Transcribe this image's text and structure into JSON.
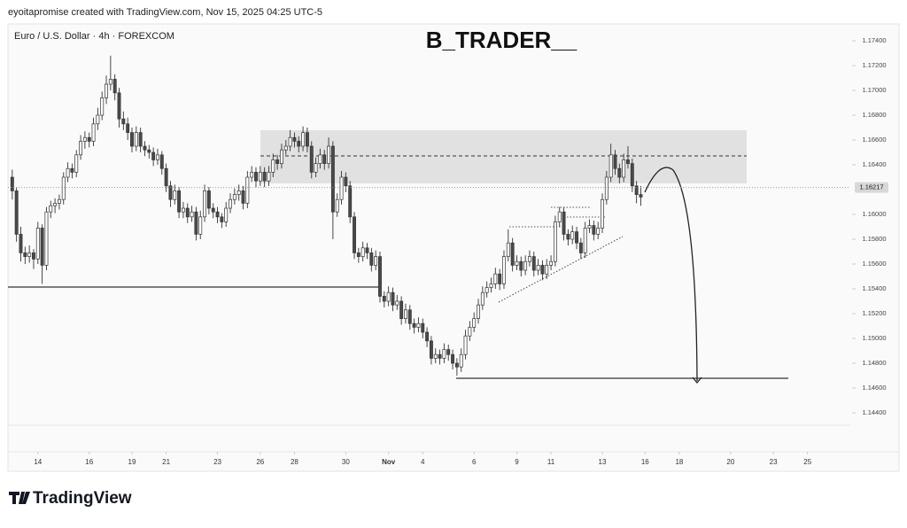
{
  "header": {
    "credit": "eyoitapromise created with TradingView.com, Nov 15, 2025 04:25 UTC-5"
  },
  "chart_data": {
    "type": "candlestick",
    "symbol": "Euro / U.S. Dollar · 4h · FOREXCOM",
    "title": "B_TRADER__",
    "up_color": "#ffffff",
    "down_color": "#4a4a4a",
    "last_price": 1.16217,
    "xlim": [
      -1,
      196
    ],
    "xticks": [
      {
        "value": 6,
        "label": "14"
      },
      {
        "value": 18,
        "label": "16"
      },
      {
        "value": 28,
        "label": "19"
      },
      {
        "value": 36,
        "label": "21"
      },
      {
        "value": 48,
        "label": "23"
      },
      {
        "value": 58,
        "label": "26"
      },
      {
        "value": 66,
        "label": "28"
      },
      {
        "value": 78,
        "label": "30"
      },
      {
        "value": 88,
        "label": "Nov"
      },
      {
        "value": 96,
        "label": "4"
      },
      {
        "value": 108,
        "label": "6"
      },
      {
        "value": 118,
        "label": "9"
      },
      {
        "value": 126,
        "label": "11"
      },
      {
        "value": 138,
        "label": "13"
      },
      {
        "value": 148,
        "label": "16"
      },
      {
        "value": 156,
        "label": "18"
      },
      {
        "value": 168,
        "label": "20"
      },
      {
        "value": 178,
        "label": "23"
      },
      {
        "value": 186,
        "label": "25"
      }
    ],
    "ylim": [
      1.143,
      1.17536
    ],
    "yticks": [
      {
        "value": 1.174,
        "label": "1.17400"
      },
      {
        "value": 1.172,
        "label": "1.17200"
      },
      {
        "value": 1.17,
        "label": "1.17000"
      },
      {
        "value": 1.168,
        "label": "1.16800"
      },
      {
        "value": 1.166,
        "label": "1.16600"
      },
      {
        "value": 1.164,
        "label": "1.16400"
      },
      {
        "value": 1.16,
        "label": "1.16000"
      },
      {
        "value": 1.158,
        "label": "1.15800"
      },
      {
        "value": 1.156,
        "label": "1.15600"
      },
      {
        "value": 1.154,
        "label": "1.15400"
      },
      {
        "value": 1.152,
        "label": "1.15200"
      },
      {
        "value": 1.15,
        "label": "1.15000"
      },
      {
        "value": 1.148,
        "label": "1.14800"
      },
      {
        "value": 1.146,
        "label": "1.14600"
      },
      {
        "value": 1.144,
        "label": "1.14400"
      }
    ],
    "candles": [
      [
        1.163,
        1.1636,
        1.1612,
        1.1619
      ],
      [
        1.1619,
        1.1622,
        1.1578,
        1.1584
      ],
      [
        1.1584,
        1.159,
        1.1562,
        1.1569
      ],
      [
        1.1569,
        1.1574,
        1.156,
        1.1566
      ],
      [
        1.1566,
        1.1575,
        1.1561,
        1.1569
      ],
      [
        1.1569,
        1.1572,
        1.1556,
        1.1564
      ],
      [
        1.1564,
        1.1594,
        1.156,
        1.1589
      ],
      [
        1.1589,
        1.1592,
        1.1544,
        1.1559
      ],
      [
        1.1559,
        1.1606,
        1.1555,
        1.1602
      ],
      [
        1.1602,
        1.1611,
        1.1597,
        1.1607
      ],
      [
        1.1607,
        1.1613,
        1.1601,
        1.1609
      ],
      [
        1.1609,
        1.1616,
        1.1604,
        1.1612
      ],
      [
        1.1612,
        1.1634,
        1.1608,
        1.163
      ],
      [
        1.163,
        1.1642,
        1.1626,
        1.1637
      ],
      [
        1.1637,
        1.1641,
        1.1629,
        1.1634
      ],
      [
        1.1634,
        1.1652,
        1.163,
        1.1648
      ],
      [
        1.1648,
        1.1664,
        1.1644,
        1.1659
      ],
      [
        1.1659,
        1.1667,
        1.1653,
        1.1662
      ],
      [
        1.1662,
        1.1666,
        1.1654,
        1.1659
      ],
      [
        1.1659,
        1.1678,
        1.1655,
        1.1673
      ],
      [
        1.1673,
        1.1686,
        1.1668,
        1.168
      ],
      [
        1.168,
        1.1699,
        1.1676,
        1.1694
      ],
      [
        1.1694,
        1.1712,
        1.1689,
        1.1705
      ],
      [
        1.1705,
        1.1728,
        1.17,
        1.1709
      ],
      [
        1.1709,
        1.1713,
        1.1692,
        1.1698
      ],
      [
        1.1698,
        1.1702,
        1.167,
        1.1677
      ],
      [
        1.1677,
        1.1683,
        1.1668,
        1.1673
      ],
      [
        1.1673,
        1.1678,
        1.166,
        1.1666
      ],
      [
        1.1666,
        1.167,
        1.165,
        1.1655
      ],
      [
        1.1655,
        1.1671,
        1.1651,
        1.1666
      ],
      [
        1.1666,
        1.167,
        1.165,
        1.1655
      ],
      [
        1.1655,
        1.1659,
        1.1647,
        1.1652
      ],
      [
        1.1652,
        1.1656,
        1.1645,
        1.165
      ],
      [
        1.165,
        1.1654,
        1.1639,
        1.1644
      ],
      [
        1.1644,
        1.1653,
        1.164,
        1.1648
      ],
      [
        1.1648,
        1.1651,
        1.1632,
        1.1637
      ],
      [
        1.1637,
        1.1641,
        1.1618,
        1.1623
      ],
      [
        1.1623,
        1.1627,
        1.1606,
        1.1612
      ],
      [
        1.1612,
        1.1624,
        1.1608,
        1.1619
      ],
      [
        1.1619,
        1.1622,
        1.1597,
        1.1602
      ],
      [
        1.1602,
        1.161,
        1.1597,
        1.1605
      ],
      [
        1.1605,
        1.1609,
        1.1593,
        1.1598
      ],
      [
        1.1598,
        1.1607,
        1.1594,
        1.1602
      ],
      [
        1.1602,
        1.1606,
        1.1579,
        1.1584
      ],
      [
        1.1584,
        1.1603,
        1.158,
        1.1598
      ],
      [
        1.1598,
        1.1624,
        1.1594,
        1.1619
      ],
      [
        1.1619,
        1.1622,
        1.16,
        1.1605
      ],
      [
        1.1605,
        1.1609,
        1.1597,
        1.1602
      ],
      [
        1.1602,
        1.1606,
        1.1593,
        1.1598
      ],
      [
        1.1598,
        1.1601,
        1.1589,
        1.1594
      ],
      [
        1.1594,
        1.161,
        1.159,
        1.1605
      ],
      [
        1.1605,
        1.1617,
        1.1601,
        1.1612
      ],
      [
        1.1612,
        1.1621,
        1.1608,
        1.1616
      ],
      [
        1.1616,
        1.1624,
        1.1611,
        1.1619
      ],
      [
        1.1619,
        1.1623,
        1.1604,
        1.1609
      ],
      [
        1.1609,
        1.1635,
        1.1605,
        1.163
      ],
      [
        1.163,
        1.1639,
        1.1626,
        1.1634
      ],
      [
        1.1634,
        1.1638,
        1.1622,
        1.1627
      ],
      [
        1.1627,
        1.1639,
        1.1623,
        1.1634
      ],
      [
        1.1634,
        1.1638,
        1.1622,
        1.1627
      ],
      [
        1.1627,
        1.1639,
        1.1623,
        1.1634
      ],
      [
        1.1634,
        1.1649,
        1.163,
        1.1644
      ],
      [
        1.1644,
        1.1648,
        1.1636,
        1.1641
      ],
      [
        1.1641,
        1.1657,
        1.1637,
        1.1652
      ],
      [
        1.1652,
        1.166,
        1.1648,
        1.1655
      ],
      [
        1.1655,
        1.1668,
        1.1651,
        1.1662
      ],
      [
        1.1662,
        1.1666,
        1.1654,
        1.1659
      ],
      [
        1.1659,
        1.1663,
        1.165,
        1.1655
      ],
      [
        1.1655,
        1.1671,
        1.1651,
        1.1666
      ],
      [
        1.1666,
        1.167,
        1.165,
        1.1655
      ],
      [
        1.1655,
        1.1659,
        1.1629,
        1.1634
      ],
      [
        1.1634,
        1.1646,
        1.163,
        1.1641
      ],
      [
        1.1641,
        1.1653,
        1.1637,
        1.1648
      ],
      [
        1.1648,
        1.1652,
        1.1636,
        1.1641
      ],
      [
        1.1641,
        1.1662,
        1.1637,
        1.1655
      ],
      [
        1.1655,
        1.1659,
        1.158,
        1.1602
      ],
      [
        1.1602,
        1.1617,
        1.1598,
        1.1612
      ],
      [
        1.1612,
        1.1635,
        1.1608,
        1.163
      ],
      [
        1.163,
        1.1634,
        1.1618,
        1.1623
      ],
      [
        1.1623,
        1.1627,
        1.1593,
        1.1598
      ],
      [
        1.1598,
        1.1602,
        1.1564,
        1.1569
      ],
      [
        1.1569,
        1.1573,
        1.1561,
        1.1566
      ],
      [
        1.1566,
        1.1578,
        1.1562,
        1.1573
      ],
      [
        1.1573,
        1.1577,
        1.1564,
        1.1569
      ],
      [
        1.1569,
        1.1573,
        1.1554,
        1.1559
      ],
      [
        1.1559,
        1.1571,
        1.1555,
        1.1566
      ],
      [
        1.1566,
        1.157,
        1.1529,
        1.1534
      ],
      [
        1.1534,
        1.1538,
        1.1525,
        1.153
      ],
      [
        1.153,
        1.1542,
        1.1526,
        1.1537
      ],
      [
        1.1537,
        1.1541,
        1.1522,
        1.1527
      ],
      [
        1.1527,
        1.1535,
        1.1523,
        1.153
      ],
      [
        1.153,
        1.1534,
        1.1511,
        1.1516
      ],
      [
        1.1516,
        1.1528,
        1.1512,
        1.1523
      ],
      [
        1.1523,
        1.1527,
        1.1507,
        1.1512
      ],
      [
        1.1512,
        1.1516,
        1.1504,
        1.1509
      ],
      [
        1.1509,
        1.1517,
        1.1505,
        1.1512
      ],
      [
        1.1512,
        1.1516,
        1.15,
        1.1505
      ],
      [
        1.1505,
        1.1509,
        1.1493,
        1.1498
      ],
      [
        1.1498,
        1.1502,
        1.1479,
        1.1484
      ],
      [
        1.1484,
        1.1492,
        1.148,
        1.1487
      ],
      [
        1.1487,
        1.1491,
        1.1479,
        1.1484
      ],
      [
        1.1484,
        1.1496,
        1.148,
        1.1491
      ],
      [
        1.1491,
        1.1495,
        1.1482,
        1.1487
      ],
      [
        1.1487,
        1.1491,
        1.1475,
        1.148
      ],
      [
        1.148,
        1.1484,
        1.147,
        1.1477
      ],
      [
        1.1477,
        1.1492,
        1.1473,
        1.1487
      ],
      [
        1.1487,
        1.1507,
        1.1483,
        1.1502
      ],
      [
        1.1502,
        1.1514,
        1.1498,
        1.1509
      ],
      [
        1.1509,
        1.1521,
        1.1505,
        1.1516
      ],
      [
        1.1516,
        1.1532,
        1.1512,
        1.1527
      ],
      [
        1.1527,
        1.1542,
        1.1523,
        1.1537
      ],
      [
        1.1537,
        1.1546,
        1.1533,
        1.1541
      ],
      [
        1.1541,
        1.1549,
        1.1537,
        1.1544
      ],
      [
        1.1544,
        1.1557,
        1.154,
        1.1552
      ],
      [
        1.1552,
        1.1556,
        1.1539,
        1.1544
      ],
      [
        1.1544,
        1.1571,
        1.154,
        1.1566
      ],
      [
        1.1566,
        1.1588,
        1.1562,
        1.1577
      ],
      [
        1.1577,
        1.1581,
        1.1554,
        1.1559
      ],
      [
        1.1559,
        1.1567,
        1.1555,
        1.1562
      ],
      [
        1.1562,
        1.1566,
        1.155,
        1.1555
      ],
      [
        1.1555,
        1.1567,
        1.1551,
        1.1562
      ],
      [
        1.1562,
        1.1571,
        1.1558,
        1.1566
      ],
      [
        1.1566,
        1.157,
        1.155,
        1.1555
      ],
      [
        1.1555,
        1.1564,
        1.1551,
        1.1559
      ],
      [
        1.1559,
        1.1563,
        1.1547,
        1.1552
      ],
      [
        1.1552,
        1.1564,
        1.1548,
        1.1559
      ],
      [
        1.1559,
        1.1567,
        1.1555,
        1.1562
      ],
      [
        1.1562,
        1.1599,
        1.1558,
        1.1594
      ],
      [
        1.1594,
        1.1606,
        1.159,
        1.1602
      ],
      [
        1.1602,
        1.1606,
        1.1579,
        1.1584
      ],
      [
        1.1584,
        1.1588,
        1.1575,
        1.158
      ],
      [
        1.158,
        1.1591,
        1.1576,
        1.1586
      ],
      [
        1.1586,
        1.159,
        1.1572,
        1.1577
      ],
      [
        1.1577,
        1.1581,
        1.1564,
        1.1569
      ],
      [
        1.1569,
        1.1594,
        1.1565,
        1.1589
      ],
      [
        1.1589,
        1.1596,
        1.1585,
        1.1591
      ],
      [
        1.1591,
        1.1595,
        1.1579,
        1.1584
      ],
      [
        1.1584,
        1.1594,
        1.158,
        1.1589
      ],
      [
        1.1589,
        1.1617,
        1.1585,
        1.1612
      ],
      [
        1.1612,
        1.1635,
        1.1608,
        1.163
      ],
      [
        1.163,
        1.1657,
        1.1626,
        1.1648
      ],
      [
        1.1648,
        1.1652,
        1.1632,
        1.1637
      ],
      [
        1.1637,
        1.1641,
        1.1625,
        1.163
      ],
      [
        1.163,
        1.1649,
        1.1626,
        1.1644
      ],
      [
        1.1644,
        1.1655,
        1.1637,
        1.1641
      ],
      [
        1.1641,
        1.1645,
        1.1618,
        1.1623
      ],
      [
        1.1623,
        1.1627,
        1.1609,
        1.1616
      ],
      [
        1.1616,
        1.1623,
        1.1607,
        1.1614
      ]
    ]
  },
  "footer": {
    "logo": "TradingView"
  }
}
